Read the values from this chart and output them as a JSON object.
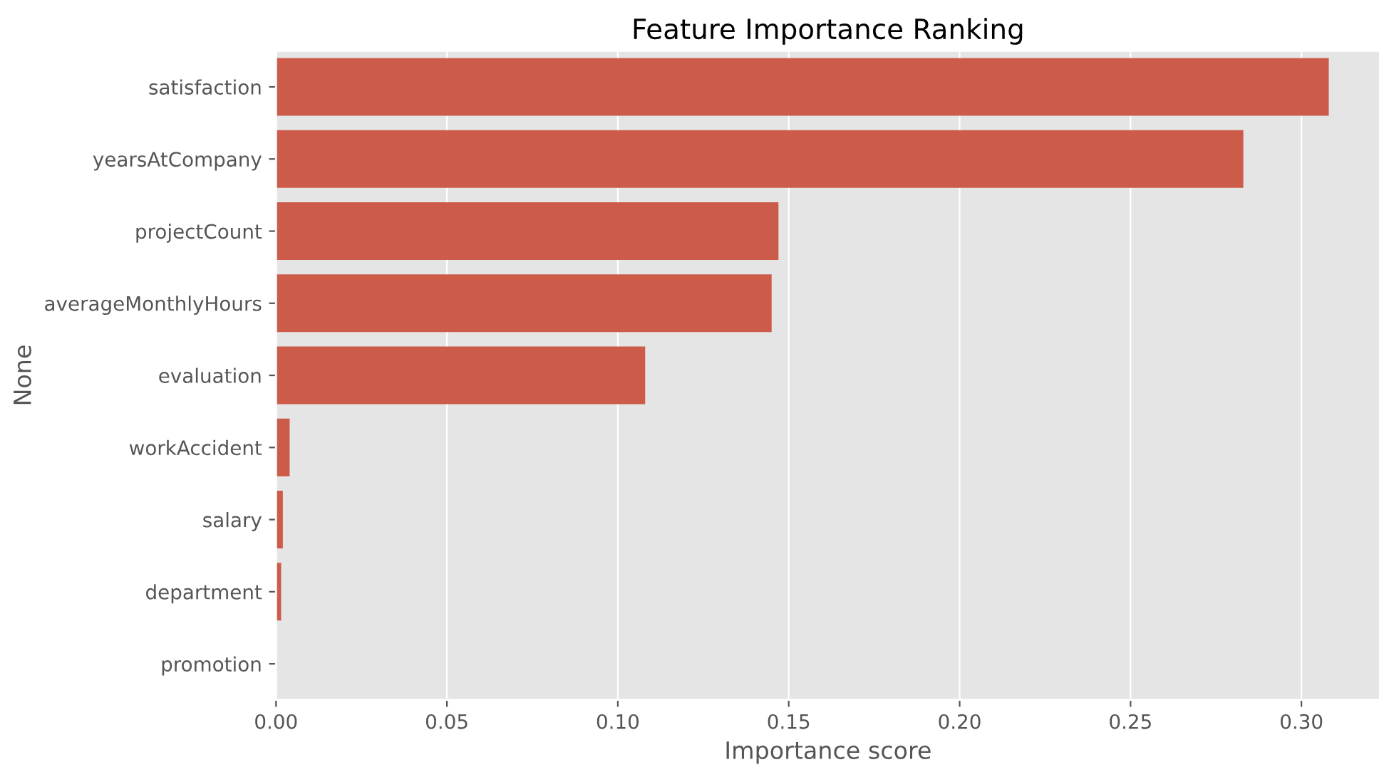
{
  "chart_data": {
    "type": "bar",
    "orientation": "horizontal",
    "title": "Feature Importance Ranking",
    "xlabel": "Importance score",
    "ylabel": "None",
    "categories": [
      "satisfaction",
      "yearsAtCompany",
      "projectCount",
      "averageMonthlyHours",
      "evaluation",
      "workAccident",
      "salary",
      "department",
      "promotion"
    ],
    "values": [
      0.308,
      0.283,
      0.147,
      0.145,
      0.108,
      0.004,
      0.002,
      0.0015,
      0.0
    ],
    "color": "#cd5b49",
    "xlim": [
      0,
      0.323
    ],
    "xticks": [
      {
        "value": 0,
        "label": "0.00"
      },
      0.05,
      {
        "value": 0.1,
        "label": "0.10"
      },
      0.15,
      {
        "value": 0.2,
        "label": "0.20"
      },
      0.25,
      {
        "value": 0.3,
        "label": "0.30"
      }
    ],
    "grid": "x"
  }
}
